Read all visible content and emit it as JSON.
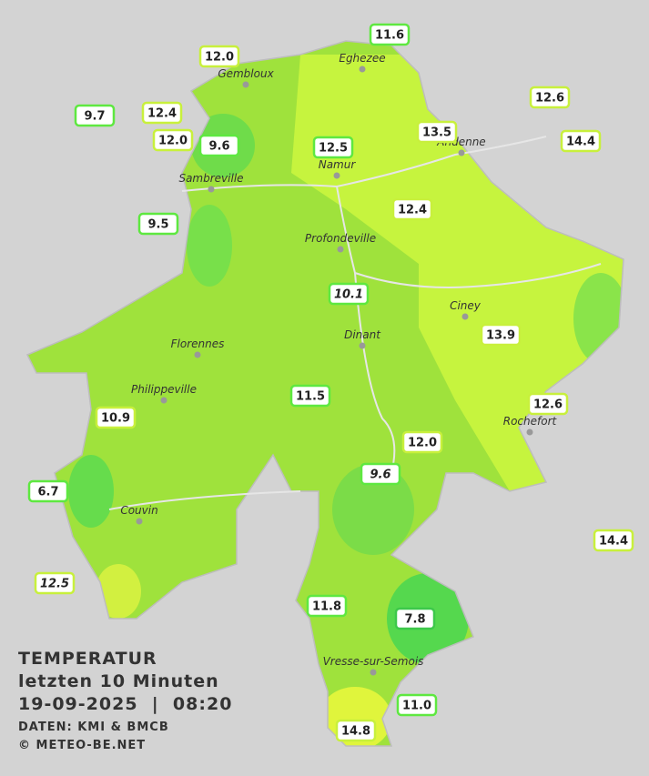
{
  "legend": {
    "title": "TEMPERATUR",
    "period": "letzten 10 Minuten",
    "datetime": "19-09-2025  |  08:20",
    "source": "DATEN: KMI & BMCB",
    "copyright": "© METEO-BE.NET"
  },
  "cities": [
    "Eghezee",
    "Gembloux",
    "Andenne",
    "Namur",
    "Sambreville",
    "Profondeville",
    "Ciney",
    "Dinant",
    "Florennes",
    "Philippeville",
    "Rochefort",
    "Couvin",
    "Vresse-sur-Semois"
  ],
  "stations": [
    "11.6",
    "12.0",
    "12.6",
    "9.7",
    "12.4",
    "13.5",
    "14.4",
    "12.0",
    "9.6",
    "12.5",
    "12.4",
    "9.5",
    "10.1",
    "13.9",
    "11.5",
    "12.6",
    "10.9",
    "12.0",
    "9.6",
    "6.7",
    "14.4",
    "12.5",
    "11.8",
    "7.8",
    "11.0",
    "14.8"
  ]
}
